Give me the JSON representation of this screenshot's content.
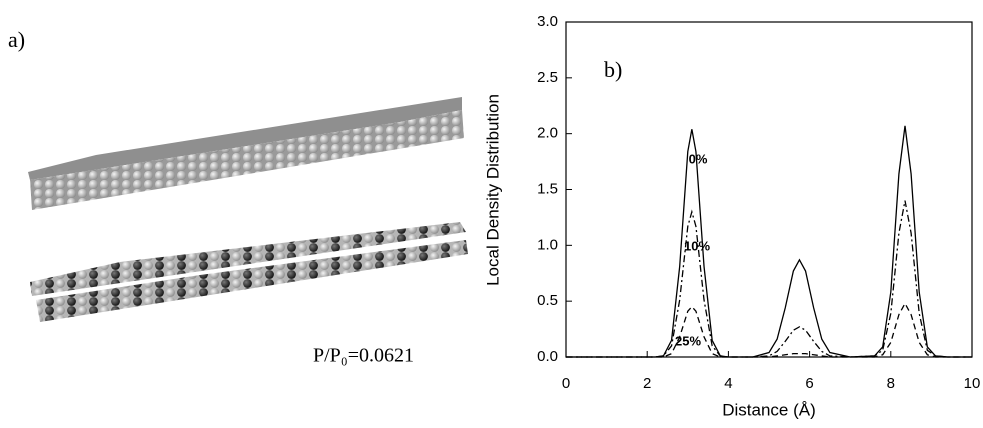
{
  "panel_a": {
    "label": "a)",
    "caption": "P/P₀=0.0621"
  },
  "chart_data": {
    "type": "line",
    "panel_label": "b)",
    "x_label": "Distance (Å)",
    "y_label": "Local Density Distribution",
    "x": [
      0,
      2.2,
      2.4,
      2.6,
      2.8,
      3.0,
      3.1,
      3.2,
      3.4,
      3.6,
      3.8,
      4.0,
      4.6,
      5.0,
      5.2,
      5.4,
      5.6,
      5.75,
      5.9,
      6.1,
      6.3,
      6.5,
      7.0,
      7.6,
      7.8,
      8.0,
      8.2,
      8.35,
      8.5,
      8.7,
      8.9,
      9.1,
      9.4,
      10
    ],
    "series": [
      {
        "name": "0%",
        "color": "#000000",
        "dash": "solid",
        "values": [
          0,
          0,
          0.01,
          0.15,
          0.81,
          1.84,
          2.04,
          1.84,
          0.81,
          0.15,
          0.01,
          0,
          0,
          0.04,
          0.16,
          0.44,
          0.77,
          0.87,
          0.77,
          0.44,
          0.16,
          0.04,
          0,
          0.01,
          0.09,
          0.58,
          1.64,
          2.07,
          1.64,
          0.58,
          0.09,
          0.01,
          0,
          0
        ]
      },
      {
        "name": "10%",
        "color": "#000000",
        "dash": "dash-dot",
        "values": [
          0,
          0,
          0.01,
          0.1,
          0.51,
          1.17,
          1.3,
          1.17,
          0.51,
          0.1,
          0.01,
          0,
          0,
          0.01,
          0.05,
          0.14,
          0.24,
          0.27,
          0.24,
          0.14,
          0.05,
          0.01,
          0,
          0.01,
          0.06,
          0.39,
          1.11,
          1.4,
          1.11,
          0.39,
          0.06,
          0.01,
          0,
          0
        ]
      },
      {
        "name": "25%",
        "color": "#000000",
        "dash": "dash",
        "values": [
          0,
          0,
          0,
          0.03,
          0.18,
          0.41,
          0.45,
          0.41,
          0.18,
          0.03,
          0,
          0,
          0,
          0,
          0.01,
          0.02,
          0.03,
          0.03,
          0.03,
          0.02,
          0.01,
          0,
          0,
          0,
          0.02,
          0.13,
          0.38,
          0.48,
          0.38,
          0.13,
          0.02,
          0,
          0,
          0
        ]
      }
    ],
    "xlim": [
      0,
      10
    ],
    "ylim": [
      0,
      3.0
    ],
    "xticks": [
      0,
      2,
      4,
      6,
      8,
      10
    ],
    "yticks": [
      {
        "value": 0,
        "label": "0.0"
      },
      0.5,
      {
        "value": 1,
        "label": "1.0"
      },
      1.5,
      {
        "value": 2,
        "label": "2.0"
      },
      2.5,
      {
        "value": 3,
        "label": "3.0"
      }
    ],
    "grid": false
  }
}
